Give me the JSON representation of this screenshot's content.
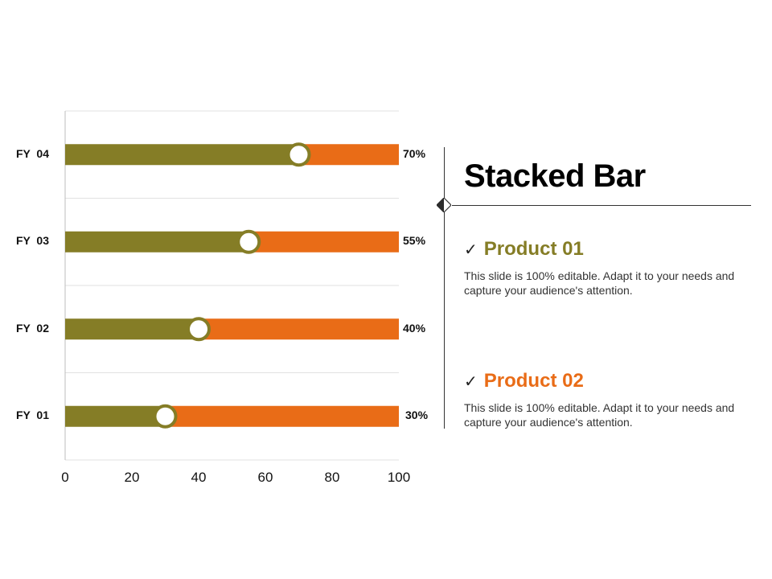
{
  "chart_data": {
    "type": "bar",
    "stacked": true,
    "orientation": "horizontal",
    "categories": [
      "FY  01",
      "FY  02",
      "FY  03",
      "FY  04"
    ],
    "series": [
      {
        "name": "Product 01",
        "color": "#857d26",
        "values": [
          30,
          40,
          55,
          70
        ]
      },
      {
        "name": "Product 02",
        "color": "#e96c17",
        "values": [
          70,
          60,
          45,
          30
        ]
      }
    ],
    "data_labels": [
      "30%",
      "40%",
      "55%",
      "70%"
    ],
    "xlim": [
      0,
      100
    ],
    "x_ticks": [
      "0",
      "20",
      "40",
      "60",
      "80",
      "100"
    ],
    "grid": true
  },
  "panel": {
    "title": "Stacked Bar",
    "products": [
      {
        "name": "Product 01",
        "color": "#857d26",
        "check_icon": "check-icon",
        "description": "This slide is 100% editable. Adapt it to your needs and capture your audience's attention."
      },
      {
        "name": "Product 02",
        "color": "#e96c17",
        "check_icon": "check-icon",
        "description": "This slide is 100% editable. Adapt it to your needs and capture your audience's attention."
      }
    ]
  }
}
